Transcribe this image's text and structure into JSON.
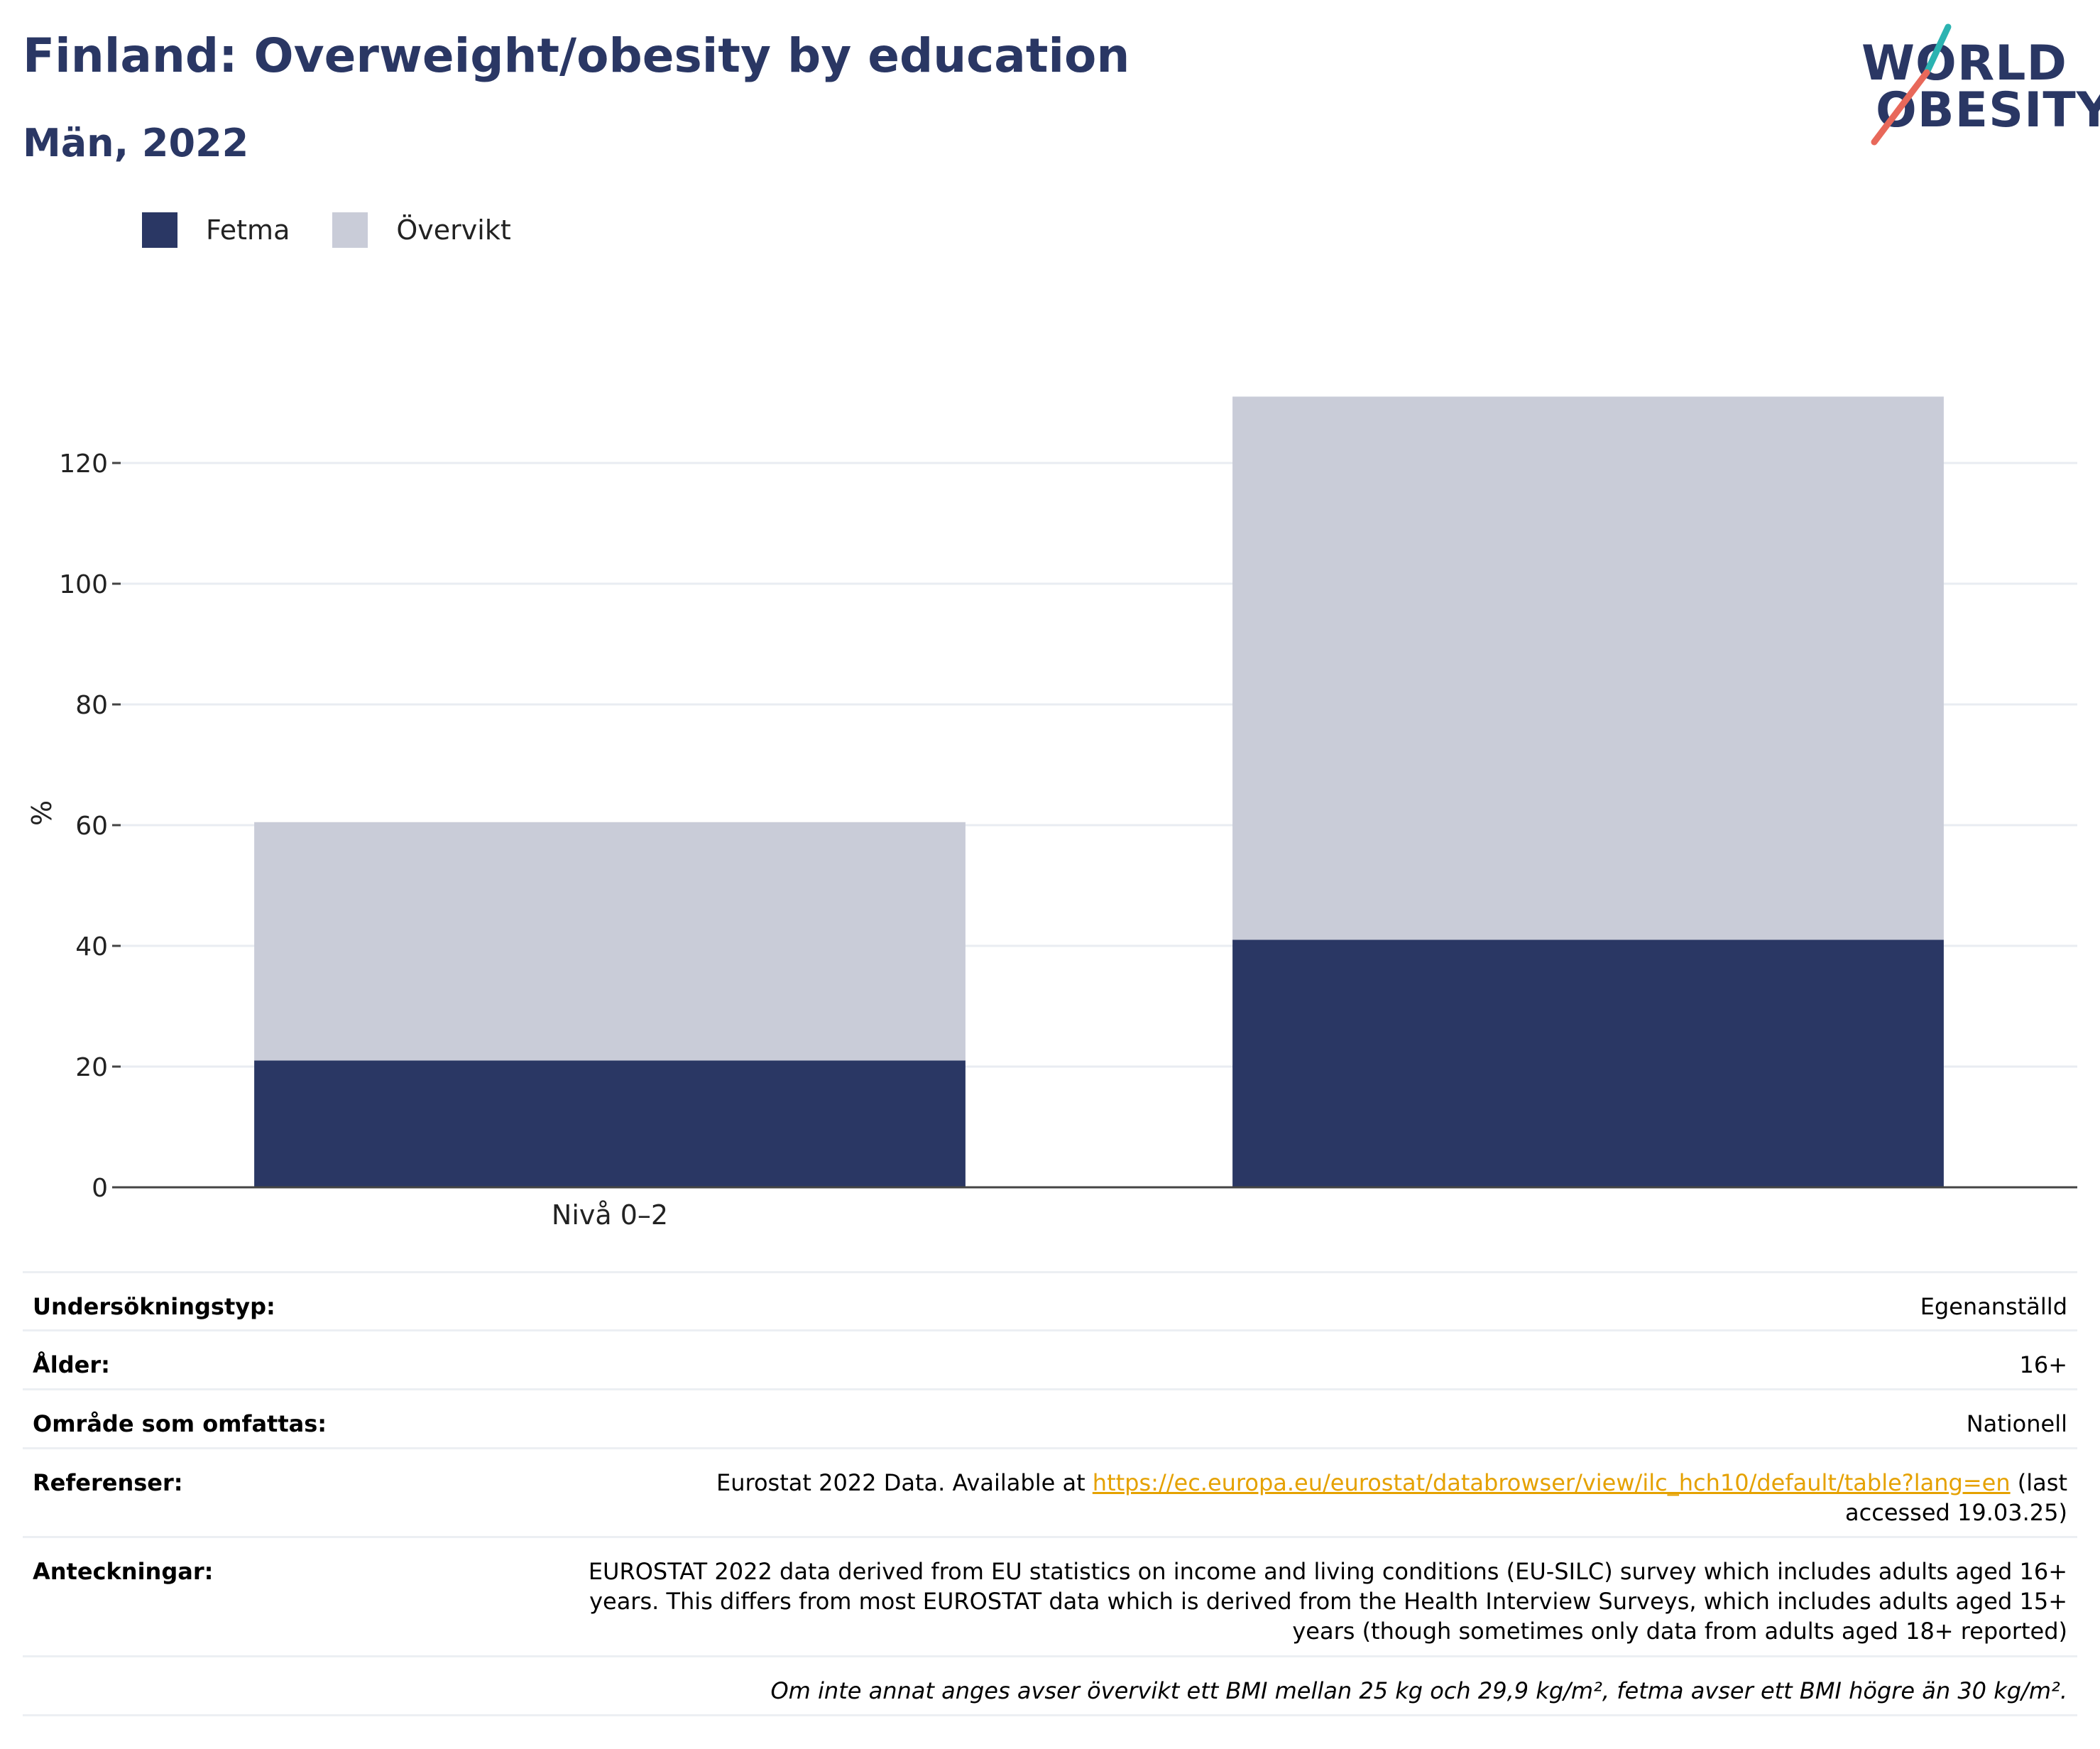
{
  "header": {
    "title": "Finland: Overweight/obesity by education",
    "subtitle": "Män, 2022"
  },
  "logo": {
    "line1": "WORLD",
    "line2": "OBESITY",
    "brand_color": "#2a3764",
    "accent_teal": "#2bb3b1",
    "accent_coral": "#e8685a"
  },
  "colors": {
    "fetma": "#2a3764",
    "overvikt": "#c9ccd8",
    "grid": "#e9ecf2",
    "axis": "#444444"
  },
  "chart_data": {
    "type": "bar",
    "stacked": true,
    "categories": [
      "Nivå 0–2",
      ""
    ],
    "series": [
      {
        "name": "Fetma",
        "values": [
          21,
          41
        ]
      },
      {
        "name": "Övervikt",
        "values": [
          39.5,
          90
        ]
      }
    ],
    "ylabel": "%",
    "xlabel": "",
    "ylim": [
      0,
      135
    ],
    "yticks": [
      0,
      20,
      40,
      60,
      80,
      100,
      120
    ],
    "grid": true,
    "legend_position": "top-left"
  },
  "info_table": [
    {
      "key": "Undersökningstyp:",
      "value": "Egenanställd"
    },
    {
      "key": "Ålder:",
      "value": "16+"
    },
    {
      "key": "Område som omfattas:",
      "value": "Nationell"
    },
    {
      "key": "Referenser:",
      "value_prefix": "Eurostat 2022 Data. Available at ",
      "link": "https://ec.europa.eu/eurostat/databrowser/view/ilc_hch10/default/table?lang=en",
      "value_suffix": " (last accessed 19.03.25)"
    },
    {
      "key": "Anteckningar:",
      "value": "EUROSTAT 2022 data derived from EU statistics on income and living conditions (EU-SILC) survey which includes adults aged 16+ years. This differs from most EUROSTAT data which is derived from the Health Interview Surveys, which includes adults aged 15+ years (though sometimes only data from adults aged 18+ reported)"
    }
  ],
  "footnote": "Om inte annat anges avser övervikt ett BMI mellan 25 kg och 29,9 kg/m², fetma avser ett BMI högre än 30 kg/m²."
}
